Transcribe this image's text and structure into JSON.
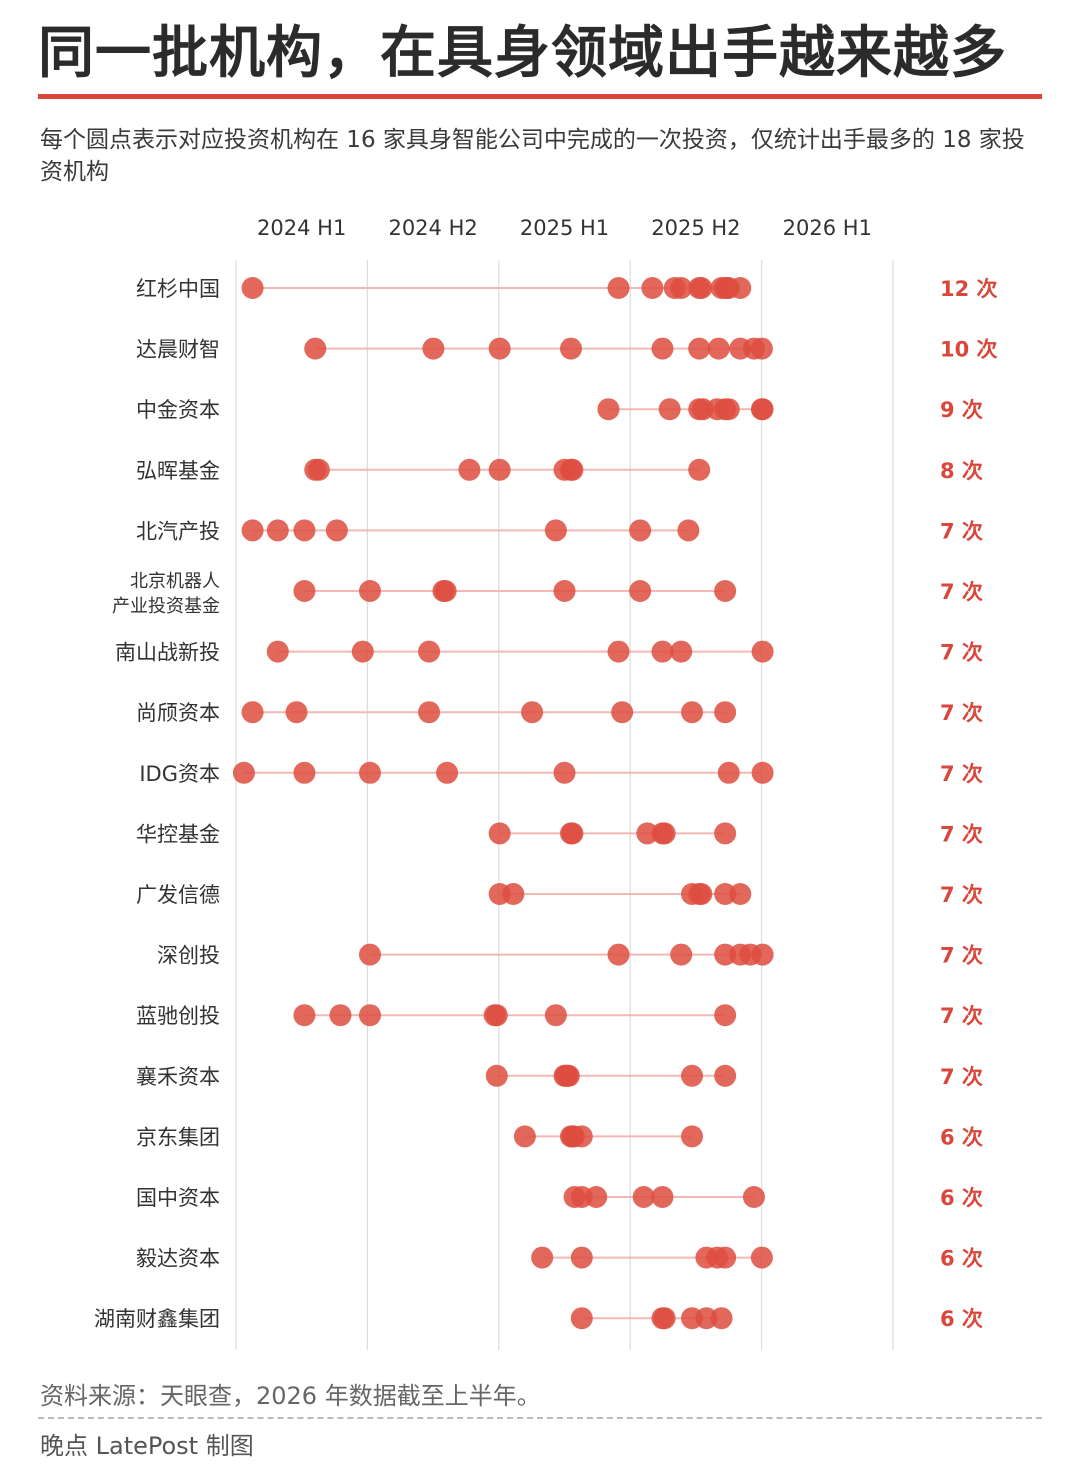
{
  "title": "同一批机构，在具身领域出手越来越多",
  "subtitle": "每个圆点表示对应投资机构在 16 家具身智能公司中完成的一次投资，仅统计出手最多的 18 家投资机构",
  "footer": {
    "source": "资料来源：天眼查，2026 年数据截至上半年。",
    "credit": "晚点 LatePost 制图"
  },
  "colors": {
    "accent": "#d9473b",
    "dot": "#de4d40",
    "count": "#d9473b",
    "grid": "#dddddd",
    "line": "#f2b9b4"
  },
  "chart_data": {
    "type": "scatter",
    "x_axis": {
      "tick_labels": [
        "2024 H1",
        "2024 H2",
        "2025 H1",
        "2025 H2",
        "2026 H1"
      ],
      "range": [
        "2024-01-01",
        "2026-06-30"
      ]
    },
    "series": [
      {
        "name": "红杉中国",
        "count_label": "12 次",
        "dates": [
          "2024-01-24",
          "2025-06-15",
          "2025-08-01",
          "2025-09-01",
          "2025-09-10",
          "2025-10-05",
          "2025-10-08",
          "2025-11-05",
          "2025-11-10",
          "2025-11-12",
          "2025-11-15",
          "2025-12-01"
        ]
      },
      {
        "name": "达晨财智",
        "count_label": "10 次",
        "dates": [
          "2024-04-20",
          "2024-10-01",
          "2025-01-01",
          "2025-04-10",
          "2025-08-15",
          "2025-10-05",
          "2025-11-01",
          "2025-12-01",
          "2025-12-20",
          "2025-12-31"
        ]
      },
      {
        "name": "中金资本",
        "count_label": "9 次",
        "dates": [
          "2025-06-01",
          "2025-08-25",
          "2025-10-05",
          "2025-10-10",
          "2025-10-30",
          "2025-11-10",
          "2025-11-15",
          "2025-12-31",
          "2026-01-01"
        ]
      },
      {
        "name": "弘晖基金",
        "count_label": "8 次",
        "dates": [
          "2024-04-20",
          "2024-04-25",
          "2024-11-20",
          "2025-01-01",
          "2025-04-01",
          "2025-04-10",
          "2025-04-12",
          "2025-10-05"
        ]
      },
      {
        "name": "北汽产投",
        "count_label": "7 次",
        "dates": [
          "2024-01-24",
          "2024-02-28",
          "2024-04-05",
          "2024-05-20",
          "2025-03-20",
          "2025-07-15",
          "2025-09-20"
        ]
      },
      {
        "name": "北京机器人\n产业投资基金",
        "count_label": "7 次",
        "dates": [
          "2024-04-05",
          "2024-07-05",
          "2024-10-15",
          "2024-10-18",
          "2025-04-01",
          "2025-07-15",
          "2025-11-10"
        ]
      },
      {
        "name": "南山战新投",
        "count_label": "7 次",
        "dates": [
          "2024-02-28",
          "2024-06-25",
          "2024-09-25",
          "2025-06-15",
          "2025-08-15",
          "2025-09-10",
          "2026-01-01"
        ]
      },
      {
        "name": "尚颀资本",
        "count_label": "7 次",
        "dates": [
          "2024-01-24",
          "2024-03-25",
          "2024-09-25",
          "2025-02-15",
          "2025-06-20",
          "2025-09-25",
          "2025-11-10"
        ]
      },
      {
        "name": "IDG资本",
        "count_label": "7 次",
        "dates": [
          "2024-01-12",
          "2024-04-05",
          "2024-07-05",
          "2024-10-20",
          "2025-04-01",
          "2025-11-15",
          "2026-01-01"
        ]
      },
      {
        "name": "华控基金",
        "count_label": "7 次",
        "dates": [
          "2025-01-01",
          "2025-04-10",
          "2025-04-12",
          "2025-07-25",
          "2025-08-15",
          "2025-08-18",
          "2025-11-10"
        ]
      },
      {
        "name": "广发信德",
        "count_label": "7 次",
        "dates": [
          "2025-01-01",
          "2025-01-20",
          "2025-09-25",
          "2025-10-05",
          "2025-10-08",
          "2025-11-10",
          "2025-12-01"
        ]
      },
      {
        "name": "深创投",
        "count_label": "7 次",
        "dates": [
          "2024-07-05",
          "2025-06-15",
          "2025-09-10",
          "2025-11-10",
          "2025-12-01",
          "2025-12-15",
          "2026-01-01"
        ]
      },
      {
        "name": "蓝驰创投",
        "count_label": "7 次",
        "dates": [
          "2024-04-05",
          "2024-05-25",
          "2024-07-05",
          "2024-12-25",
          "2024-12-28",
          "2025-03-20",
          "2025-11-10"
        ]
      },
      {
        "name": "襄禾资本",
        "count_label": "7 次",
        "dates": [
          "2024-12-28",
          "2025-04-01",
          "2025-04-03",
          "2025-04-05",
          "2025-04-07",
          "2025-09-25",
          "2025-11-10"
        ]
      },
      {
        "name": "京东集团",
        "count_label": "6 次",
        "dates": [
          "2025-02-05",
          "2025-04-10",
          "2025-04-12",
          "2025-04-14",
          "2025-04-25",
          "2025-09-25"
        ]
      },
      {
        "name": "国中资本",
        "count_label": "6 次",
        "dates": [
          "2025-04-15",
          "2025-04-25",
          "2025-05-15",
          "2025-07-20",
          "2025-08-15",
          "2025-12-20"
        ]
      },
      {
        "name": "毅达资本",
        "count_label": "6 次",
        "dates": [
          "2025-03-01",
          "2025-04-25",
          "2025-10-15",
          "2025-10-30",
          "2025-11-10",
          "2025-12-31"
        ]
      },
      {
        "name": "湖南财鑫集团",
        "count_label": "6 次",
        "dates": [
          "2025-04-25",
          "2025-08-15",
          "2025-08-18",
          "2025-09-25",
          "2025-10-15",
          "2025-11-05"
        ]
      }
    ]
  }
}
